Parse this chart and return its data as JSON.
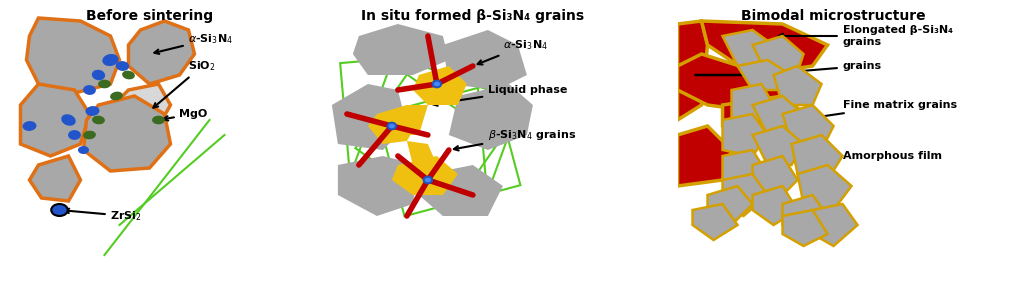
{
  "title1": "Before sintering",
  "title2": "In situ formed β-Si₃N₄ grains",
  "title3": "Bimodal microstructure",
  "bg": "#ffffff",
  "gray": "#a8a8a8",
  "gray2": "#c0c0c0",
  "orange": "#e07015",
  "blue": "#2255cc",
  "green_p": "#3a6b20",
  "green_l": "#55cc22",
  "yellow": "#f0c010",
  "red": "#c00000",
  "gold": "#d4a000",
  "tfont": 10,
  "lfont": 8
}
